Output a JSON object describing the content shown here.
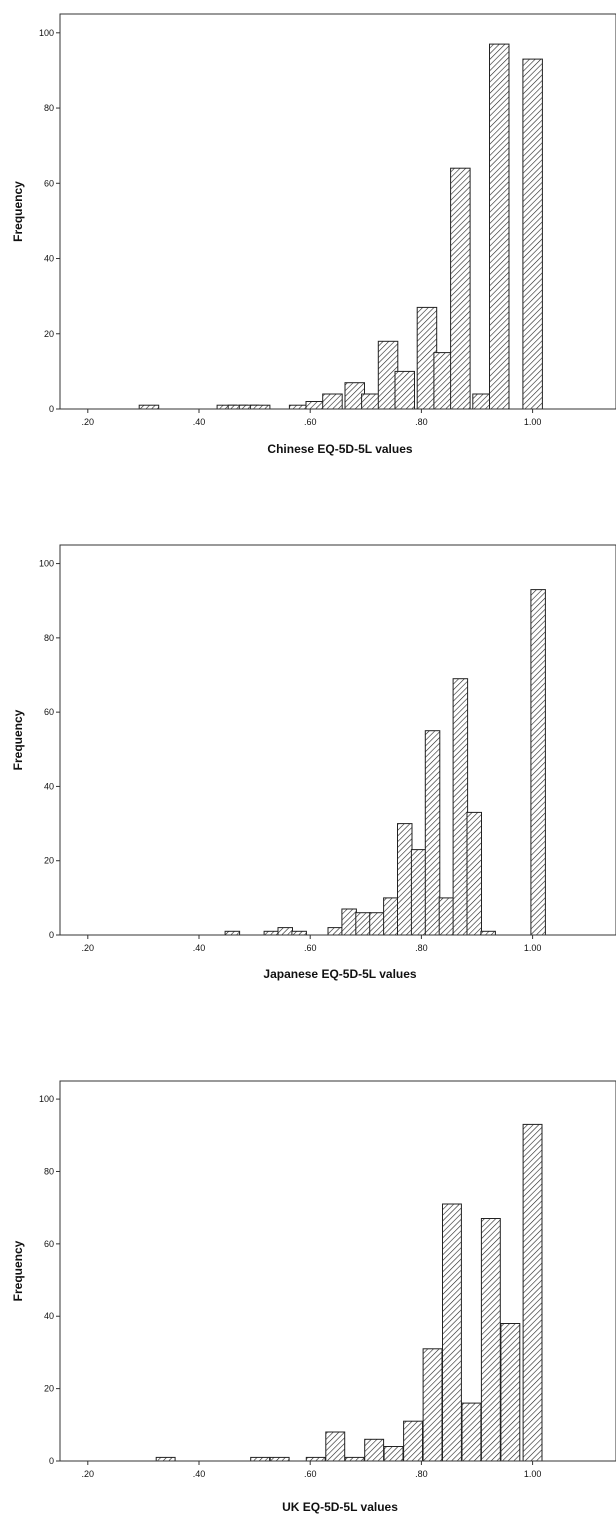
{
  "chart_data": [
    {
      "type": "bar",
      "xlabel": "Chinese EQ-5D-5L values",
      "ylabel": "Frequency",
      "xlim": [
        0.15,
        1.15
      ],
      "ylim": [
        0,
        105
      ],
      "xticks": [
        ".20",
        ".40",
        ".60",
        ".80",
        "1.00"
      ],
      "yticks": [
        "0",
        "20",
        "40",
        "60",
        "80",
        "100"
      ],
      "bin_width": 0.035,
      "x": [
        0.31,
        0.45,
        0.47,
        0.49,
        0.51,
        0.58,
        0.61,
        0.64,
        0.68,
        0.71,
        0.74,
        0.77,
        0.81,
        0.84,
        0.87,
        0.91,
        0.94,
        1.0
      ],
      "values": [
        1,
        1,
        1,
        1,
        1,
        1,
        2,
        4,
        7,
        4,
        18,
        10,
        27,
        15,
        64,
        4,
        97,
        93
      ],
      "grid": false
    },
    {
      "type": "bar",
      "xlabel": "Japanese EQ-5D-5L values",
      "ylabel": "Frequency",
      "xlim": [
        0.15,
        1.15
      ],
      "ylim": [
        0,
        105
      ],
      "xticks": [
        ".20",
        ".40",
        ".60",
        ".80",
        "1.00"
      ],
      "yticks": [
        "0",
        "20",
        "40",
        "60",
        "80",
        "100"
      ],
      "bin_width": 0.026,
      "x": [
        0.46,
        0.53,
        0.555,
        0.58,
        0.645,
        0.67,
        0.695,
        0.72,
        0.745,
        0.77,
        0.795,
        0.82,
        0.845,
        0.87,
        0.895,
        0.92,
        1.01
      ],
      "values": [
        1,
        1,
        2,
        1,
        2,
        7,
        6,
        6,
        10,
        30,
        23,
        55,
        10,
        69,
        33,
        1,
        93
      ],
      "grid": false
    },
    {
      "type": "bar",
      "xlabel": "UK EQ-5D-5L values",
      "ylabel": "Frequency",
      "xlim": [
        0.15,
        1.15
      ],
      "ylim": [
        0,
        105
      ],
      "xticks": [
        ".20",
        ".40",
        ".60",
        ".80",
        "1.00"
      ],
      "yticks": [
        "0",
        "20",
        "40",
        "60",
        "80",
        "100"
      ],
      "bin_width": 0.034,
      "x": [
        0.34,
        0.51,
        0.545,
        0.61,
        0.645,
        0.68,
        0.715,
        0.75,
        0.785,
        0.82,
        0.855,
        0.89,
        0.925,
        0.96,
        1.0
      ],
      "values": [
        1,
        1,
        1,
        1,
        8,
        1,
        6,
        4,
        11,
        31,
        71,
        16,
        67,
        38,
        93
      ],
      "grid": false
    }
  ]
}
